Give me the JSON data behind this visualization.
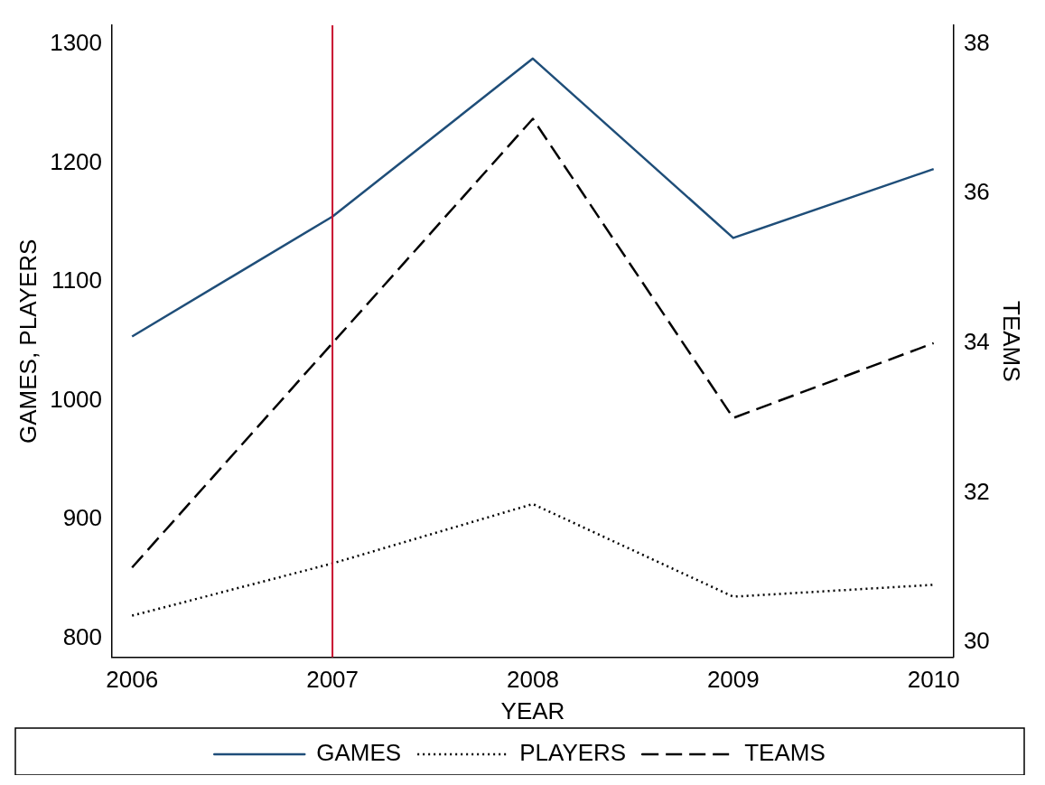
{
  "chart_data": {
    "type": "line",
    "xlabel": "YEAR",
    "ylabel": "GAMES, PLAYERS",
    "y2label": "TEAMS",
    "x": [
      2006,
      2007,
      2008,
      2009,
      2010
    ],
    "series": [
      {
        "name": "GAMES",
        "color": "#1f4e79",
        "values": [
          1054,
          1155,
          1288,
          1137,
          1195
        ],
        "line_style": "solid"
      },
      {
        "name": "PLAYERS",
        "color": "#000000",
        "values": [
          819,
          863,
          913,
          835,
          845
        ],
        "line_style": "dotted"
      },
      {
        "name": "TEAMS",
        "color": "#000000",
        "values": [
          31,
          34,
          37,
          33,
          34
        ],
        "line_style": "dashed",
        "axis": "y2"
      }
    ],
    "xlim": [
      2005.9,
      2010.1
    ],
    "xticks": [
      2006,
      2007,
      2008,
      2009,
      2010
    ],
    "ylim": [
      784,
      1316
    ],
    "yticks": [
      800,
      900,
      1000,
      1100,
      1200,
      1300
    ],
    "y2lim": [
      29.8,
      38.25
    ],
    "y2ticks": [
      30,
      32,
      34,
      36,
      38
    ],
    "ref_lines": [
      {
        "axis": "x",
        "value": 2007,
        "color": "#c8102e"
      }
    ],
    "grid": false,
    "legend": "bottom",
    "marker": "none"
  }
}
